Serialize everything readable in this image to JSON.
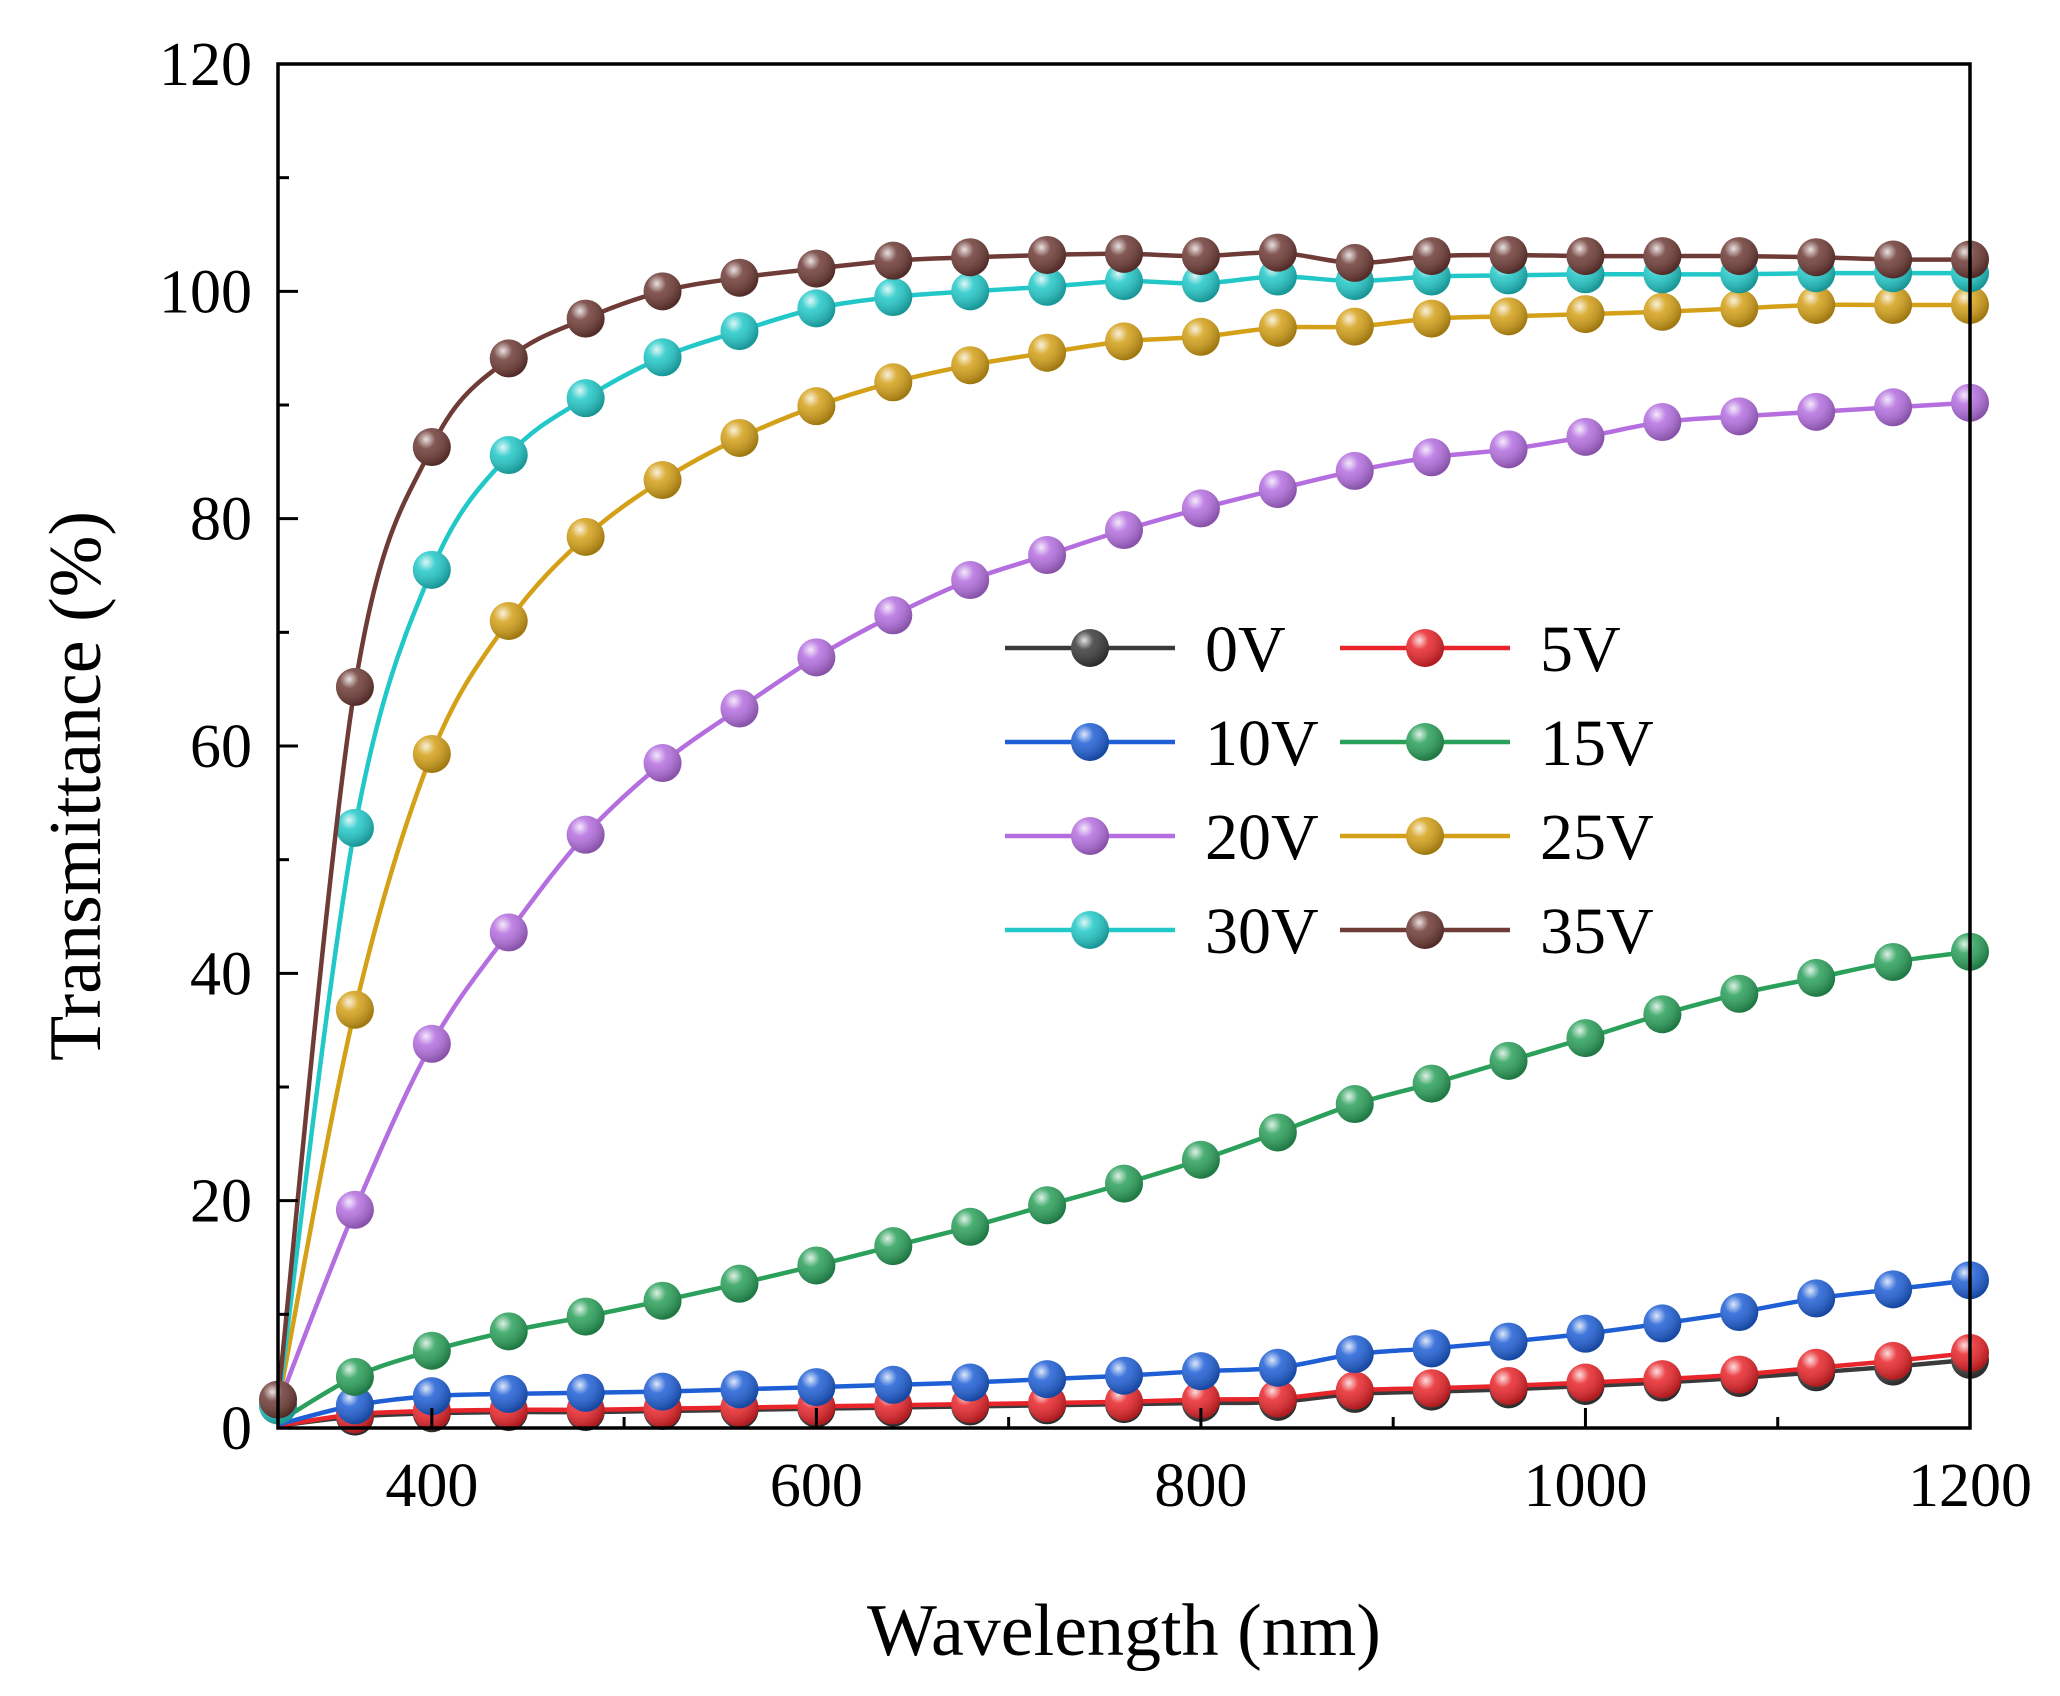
{
  "chart_data": {
    "type": "line",
    "title": "",
    "xlabel": "Wavelength (nm)",
    "ylabel": "Transmittance (%)",
    "xlim": [
      320,
      1200
    ],
    "ylim": [
      0,
      120
    ],
    "xticks": [
      400,
      600,
      800,
      1000,
      1200
    ],
    "yticks": [
      0,
      20,
      40,
      60,
      80,
      100,
      120
    ],
    "legend_position": "center-right",
    "x": [
      320,
      360,
      400,
      440,
      480,
      520,
      560,
      600,
      640,
      680,
      720,
      760,
      800,
      840,
      880,
      920,
      960,
      1000,
      1040,
      1080,
      1120,
      1160,
      1200
    ],
    "series": [
      {
        "name": "0V",
        "color": "#3a3a3a",
        "values": [
          0.2,
          1.0,
          1.3,
          1.4,
          1.4,
          1.5,
          1.6,
          1.7,
          1.8,
          1.9,
          2.0,
          2.1,
          2.2,
          2.3,
          3.0,
          3.2,
          3.4,
          3.7,
          4.0,
          4.4,
          4.9,
          5.4,
          6.0
        ]
      },
      {
        "name": "5V",
        "color": "#e8252a",
        "values": [
          0.2,
          1.2,
          1.5,
          1.6,
          1.6,
          1.7,
          1.8,
          1.9,
          2.0,
          2.1,
          2.2,
          2.3,
          2.5,
          2.6,
          3.3,
          3.5,
          3.7,
          4.0,
          4.3,
          4.7,
          5.3,
          5.9,
          6.6
        ]
      },
      {
        "name": "10V",
        "color": "#1f5fd6",
        "values": [
          0.3,
          2.0,
          2.8,
          3.0,
          3.1,
          3.2,
          3.4,
          3.6,
          3.8,
          4.0,
          4.3,
          4.6,
          5.0,
          5.3,
          6.5,
          7.0,
          7.6,
          8.3,
          9.2,
          10.2,
          11.4,
          12.2,
          13.0
        ]
      },
      {
        "name": "15V",
        "color": "#2aa05a",
        "values": [
          0.5,
          4.5,
          6.8,
          8.5,
          9.8,
          11.2,
          12.7,
          14.3,
          16.0,
          17.7,
          19.6,
          21.5,
          23.6,
          26.0,
          28.5,
          30.3,
          32.3,
          34.3,
          36.4,
          38.2,
          39.6,
          41.0,
          41.9
        ]
      },
      {
        "name": "20V",
        "color": "#b46ee0",
        "values": [
          2.0,
          19.2,
          33.8,
          43.6,
          52.2,
          58.5,
          63.3,
          67.8,
          71.5,
          74.6,
          76.8,
          79.0,
          80.9,
          82.6,
          84.2,
          85.4,
          86.1,
          87.2,
          88.5,
          89.0,
          89.4,
          89.8,
          90.2
        ]
      },
      {
        "name": "25V",
        "color": "#d4a017",
        "values": [
          2.0,
          36.8,
          59.3,
          71.0,
          78.4,
          83.4,
          87.1,
          89.9,
          92.0,
          93.5,
          94.6,
          95.6,
          96.0,
          96.8,
          96.9,
          97.6,
          97.8,
          98.0,
          98.2,
          98.5,
          98.8,
          98.8,
          98.8
        ]
      },
      {
        "name": "30V",
        "color": "#22c8c8",
        "values": [
          2.0,
          52.8,
          75.5,
          85.6,
          90.6,
          94.2,
          96.5,
          98.5,
          99.5,
          100.0,
          100.4,
          100.9,
          100.7,
          101.3,
          100.9,
          101.3,
          101.4,
          101.5,
          101.5,
          101.5,
          101.6,
          101.6,
          101.6
        ]
      },
      {
        "name": "35V",
        "color": "#6e3b36",
        "values": [
          2.5,
          65.2,
          86.3,
          94.1,
          97.6,
          100.0,
          101.2,
          102.0,
          102.7,
          103.0,
          103.2,
          103.3,
          103.1,
          103.4,
          102.5,
          103.1,
          103.2,
          103.1,
          103.1,
          103.1,
          103.0,
          102.8,
          102.8
        ]
      }
    ]
  }
}
